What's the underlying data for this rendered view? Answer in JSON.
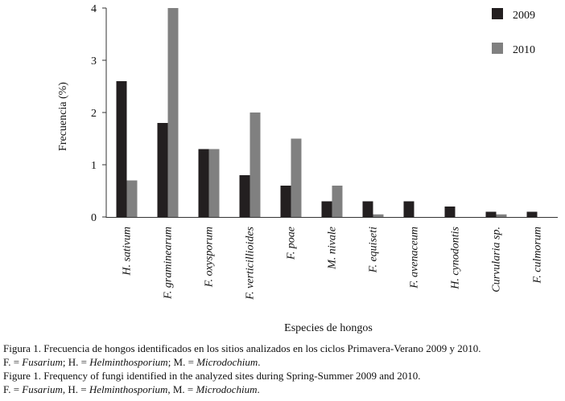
{
  "chart_data": {
    "type": "bar",
    "ylabel": "Frecuencia (%)",
    "xlabel": "Especies de hongos",
    "ylim": [
      0,
      4
    ],
    "yticks": [
      "0",
      "1",
      "2",
      "3",
      "4"
    ],
    "grid": false,
    "legend_position": "top-right",
    "categories": [
      "H. sativum",
      "F. graminearum",
      "F. oxysporum",
      "F. verticillioides",
      "F. poae",
      "M. nivale",
      "F. equiseti",
      "F. avenaceum",
      "H. cynodontis",
      "Curvularia sp.",
      "F. culmorum"
    ],
    "series": [
      {
        "name": "2009",
        "color": "#231f20",
        "values": [
          2.6,
          1.8,
          1.3,
          0.8,
          0.6,
          0.3,
          0.3,
          0.3,
          0.2,
          0.1,
          0.1
        ]
      },
      {
        "name": "2010",
        "color": "#808080",
        "values": [
          0.7,
          4.0,
          1.3,
          2.0,
          1.5,
          0.6,
          0.05,
          0,
          0,
          0.05,
          0
        ]
      }
    ]
  },
  "caption": {
    "line1": "Figura 1. Frecuencia de hongos identificados en los sitios analizados en los ciclos Primavera-Verano 2009 y 2010.",
    "line2": {
      "p1": "F. = ",
      "p2": "Fusarium",
      "p3": "; H. = ",
      "p4": "Helminthosporium",
      "p5": "; M. = ",
      "p6": "Microdochium",
      "p7": "."
    },
    "line3": "Figure 1. Frequency of fungi identified in the analyzed sites during Spring-Summer 2009 and 2010.",
    "line4": {
      "p1": "F. = ",
      "p2": "Fusarium",
      "p3": ", H. = ",
      "p4": "Helminthosporium",
      "p5": ", M. = ",
      "p6": "Microdochium",
      "p7": "."
    }
  }
}
